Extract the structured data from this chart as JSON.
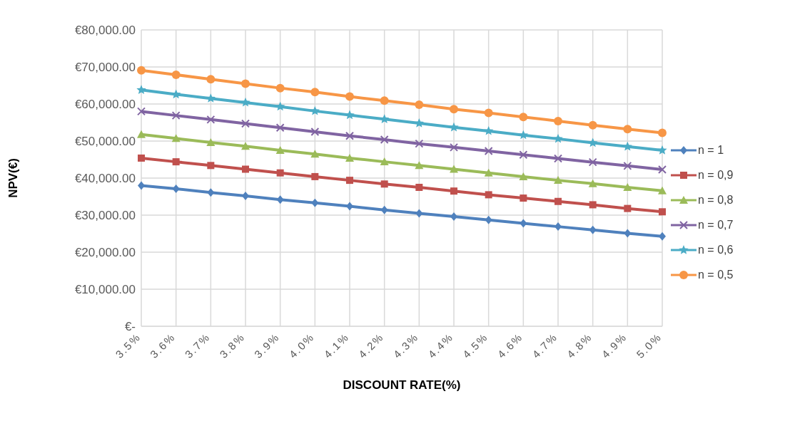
{
  "chart_data": {
    "type": "line",
    "xlabel": "DISCOUNT RATE(%)",
    "ylabel": "NPV(€)",
    "categories": [
      "3.5%",
      "3.6%",
      "3.7%",
      "3.8%",
      "3.9%",
      "4.0%",
      "4.1%",
      "4.2%",
      "4.3%",
      "4.4%",
      "4.5%",
      "4.6%",
      "4.7%",
      "4.8%",
      "4.9%",
      "5.0%"
    ],
    "ylim": [
      0,
      80000
    ],
    "yticks": [
      {
        "value": 0,
        "label": "€-"
      },
      {
        "value": 10000,
        "label": "€10,000.00"
      },
      {
        "value": 20000,
        "label": "€20,000.00"
      },
      {
        "value": 30000,
        "label": "€30,000.00"
      },
      {
        "value": 40000,
        "label": "€40,000.00"
      },
      {
        "value": 50000,
        "label": "€50,000.00"
      },
      {
        "value": 60000,
        "label": "€60,000.00"
      },
      {
        "value": 70000,
        "label": "€70,000.00"
      },
      {
        "value": 80000,
        "label": "€80,000.00"
      }
    ],
    "grid": true,
    "legend": "right",
    "series": [
      {
        "name": "n = 1",
        "color": "#4f81bd",
        "marker": "diamond",
        "values": [
          38000,
          37100,
          36100,
          35200,
          34200,
          33300,
          32400,
          31400,
          30500,
          29600,
          28700,
          27800,
          26900,
          26000,
          25100,
          24300
        ]
      },
      {
        "name": "n = 0,9",
        "color": "#c0504d",
        "marker": "square",
        "values": [
          45400,
          44400,
          43400,
          42400,
          41400,
          40400,
          39400,
          38400,
          37500,
          36500,
          35500,
          34600,
          33700,
          32800,
          31800,
          30900
        ]
      },
      {
        "name": "n = 0,8",
        "color": "#9bbb59",
        "marker": "triangle",
        "values": [
          51800,
          50700,
          49600,
          48600,
          47500,
          46500,
          45400,
          44400,
          43400,
          42400,
          41400,
          40400,
          39400,
          38500,
          37500,
          36600
        ]
      },
      {
        "name": "n = 0,7",
        "color": "#8064a2",
        "marker": "cross",
        "values": [
          58000,
          56900,
          55800,
          54700,
          53600,
          52500,
          51400,
          50400,
          49300,
          48300,
          47300,
          46300,
          45300,
          44300,
          43300,
          42300
        ]
      },
      {
        "name": "n = 0,6",
        "color": "#4bacc6",
        "marker": "star",
        "values": [
          63800,
          62600,
          61500,
          60400,
          59300,
          58100,
          57000,
          55900,
          54800,
          53700,
          52700,
          51600,
          50600,
          49500,
          48500,
          47500
        ]
      },
      {
        "name": "n = 0,5",
        "color": "#f79646",
        "marker": "circle",
        "values": [
          69100,
          67900,
          66700,
          65500,
          64300,
          63200,
          62000,
          60900,
          59800,
          58600,
          57600,
          56500,
          55400,
          54300,
          53200,
          52200
        ]
      }
    ]
  }
}
